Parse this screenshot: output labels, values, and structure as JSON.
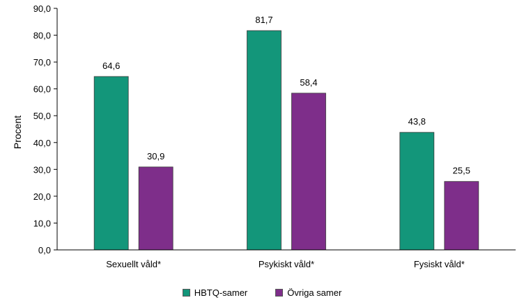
{
  "chart_data": {
    "type": "bar",
    "ylabel": "Procent",
    "ylim": [
      0,
      90
    ],
    "yticks": [
      "0,0",
      "10,0",
      "20,0",
      "30,0",
      "40,0",
      "50,0",
      "60,0",
      "70,0",
      "80,0",
      "90,0"
    ],
    "categories": [
      "Sexuellt våld*",
      "Psykiskt våld*",
      "Fysiskt våld*"
    ],
    "series": [
      {
        "name": "HBTQ-samer",
        "color": "#13967A",
        "values": [
          64.6,
          81.7,
          43.8
        ],
        "labels": [
          "64,6",
          "81,7",
          "43,8"
        ]
      },
      {
        "name": "Övriga samer",
        "color": "#7E2E8A",
        "values": [
          30.9,
          58.4,
          25.5
        ],
        "labels": [
          "30,9",
          "58,4",
          "25,5"
        ]
      }
    ],
    "grid": false,
    "legend_position": "bottom"
  }
}
